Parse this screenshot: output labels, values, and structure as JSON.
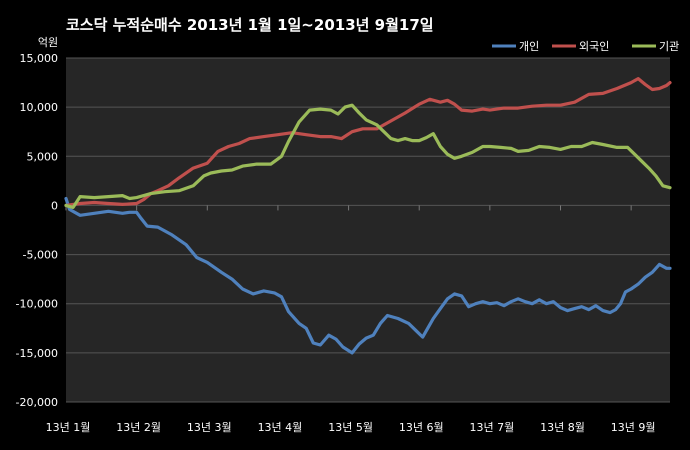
{
  "chart_data": {
    "type": "line",
    "title": "코스닥  누적순매수 2013년 1월 1일~2013년 9월17일",
    "ylabel": "억원",
    "xlabel": "",
    "ylim": [
      -20000,
      15000
    ],
    "yticks": [
      "15,000",
      "10,000",
      "5,000",
      "0",
      "-5,000",
      "-10,000",
      "-15,000",
      "-20,000"
    ],
    "ytick_values": [
      15000,
      10000,
      5000,
      0,
      -5000,
      -10000,
      -15000,
      -20000
    ],
    "xticks": [
      "13년 1월",
      "13년 2월",
      "13년 3월",
      "13년 4월",
      "13년 5월",
      "13년 6월",
      "13년 7월",
      "13년 8월",
      "13년 9월"
    ],
    "x_domain": [
      0,
      8.55
    ],
    "grid": true,
    "legend_position": "top-right",
    "series": [
      {
        "name": "개인",
        "color": "#4f81bd",
        "points": [
          [
            0.0,
            700
          ],
          [
            0.05,
            -400
          ],
          [
            0.2,
            -1000
          ],
          [
            0.4,
            -800
          ],
          [
            0.6,
            -600
          ],
          [
            0.8,
            -800
          ],
          [
            0.9,
            -700
          ],
          [
            1.0,
            -700
          ],
          [
            1.05,
            -1200
          ],
          [
            1.15,
            -2100
          ],
          [
            1.3,
            -2200
          ],
          [
            1.5,
            -3000
          ],
          [
            1.7,
            -4000
          ],
          [
            1.85,
            -5300
          ],
          [
            2.0,
            -5800
          ],
          [
            2.2,
            -6800
          ],
          [
            2.35,
            -7500
          ],
          [
            2.5,
            -8500
          ],
          [
            2.65,
            -9000
          ],
          [
            2.8,
            -8700
          ],
          [
            2.95,
            -8900
          ],
          [
            3.05,
            -9300
          ],
          [
            3.15,
            -10800
          ],
          [
            3.3,
            -12000
          ],
          [
            3.4,
            -12500
          ],
          [
            3.5,
            -14000
          ],
          [
            3.6,
            -14200
          ],
          [
            3.72,
            -13200
          ],
          [
            3.82,
            -13600
          ],
          [
            3.92,
            -14400
          ],
          [
            4.05,
            -15000
          ],
          [
            4.15,
            -14100
          ],
          [
            4.25,
            -13500
          ],
          [
            4.35,
            -13200
          ],
          [
            4.45,
            -12000
          ],
          [
            4.55,
            -11200
          ],
          [
            4.7,
            -11500
          ],
          [
            4.85,
            -12000
          ],
          [
            4.95,
            -12700
          ],
          [
            5.05,
            -13400
          ],
          [
            5.12,
            -12500
          ],
          [
            5.2,
            -11500
          ],
          [
            5.3,
            -10500
          ],
          [
            5.4,
            -9500
          ],
          [
            5.5,
            -9000
          ],
          [
            5.6,
            -9200
          ],
          [
            5.7,
            -10300
          ],
          [
            5.8,
            -10000
          ],
          [
            5.9,
            -9800
          ],
          [
            6.0,
            -10000
          ],
          [
            6.1,
            -9900
          ],
          [
            6.2,
            -10200
          ],
          [
            6.3,
            -9800
          ],
          [
            6.4,
            -9500
          ],
          [
            6.5,
            -9800
          ],
          [
            6.6,
            -10000
          ],
          [
            6.7,
            -9600
          ],
          [
            6.8,
            -10000
          ],
          [
            6.9,
            -9800
          ],
          [
            7.0,
            -10400
          ],
          [
            7.1,
            -10700
          ],
          [
            7.2,
            -10500
          ],
          [
            7.3,
            -10300
          ],
          [
            7.4,
            -10600
          ],
          [
            7.5,
            -10200
          ],
          [
            7.6,
            -10700
          ],
          [
            7.7,
            -10900
          ],
          [
            7.78,
            -10600
          ],
          [
            7.85,
            -10000
          ],
          [
            7.92,
            -8800
          ],
          [
            8.0,
            -8500
          ],
          [
            8.1,
            -8000
          ],
          [
            8.2,
            -7300
          ],
          [
            8.3,
            -6800
          ],
          [
            8.4,
            -6000
          ],
          [
            8.5,
            -6400
          ],
          [
            8.55,
            -6400
          ]
        ]
      },
      {
        "name": "외국인",
        "color": "#c0504d",
        "points": [
          [
            0.0,
            0
          ],
          [
            0.2,
            200
          ],
          [
            0.4,
            300
          ],
          [
            0.6,
            200
          ],
          [
            0.8,
            100
          ],
          [
            1.0,
            200
          ],
          [
            1.1,
            600
          ],
          [
            1.2,
            1200
          ],
          [
            1.3,
            1500
          ],
          [
            1.45,
            2000
          ],
          [
            1.6,
            2800
          ],
          [
            1.8,
            3800
          ],
          [
            2.0,
            4300
          ],
          [
            2.15,
            5500
          ],
          [
            2.3,
            6000
          ],
          [
            2.45,
            6300
          ],
          [
            2.6,
            6800
          ],
          [
            2.8,
            7000
          ],
          [
            3.0,
            7200
          ],
          [
            3.2,
            7400
          ],
          [
            3.4,
            7200
          ],
          [
            3.6,
            7000
          ],
          [
            3.75,
            7000
          ],
          [
            3.9,
            6800
          ],
          [
            4.05,
            7500
          ],
          [
            4.2,
            7800
          ],
          [
            4.4,
            7800
          ],
          [
            4.6,
            8600
          ],
          [
            4.8,
            9400
          ],
          [
            5.0,
            10300
          ],
          [
            5.15,
            10800
          ],
          [
            5.3,
            10500
          ],
          [
            5.4,
            10700
          ],
          [
            5.5,
            10300
          ],
          [
            5.6,
            9700
          ],
          [
            5.75,
            9600
          ],
          [
            5.9,
            9800
          ],
          [
            6.0,
            9700
          ],
          [
            6.2,
            9900
          ],
          [
            6.4,
            9900
          ],
          [
            6.6,
            10100
          ],
          [
            6.8,
            10200
          ],
          [
            7.0,
            10200
          ],
          [
            7.2,
            10500
          ],
          [
            7.4,
            11300
          ],
          [
            7.6,
            11400
          ],
          [
            7.8,
            11900
          ],
          [
            8.0,
            12500
          ],
          [
            8.1,
            12900
          ],
          [
            8.2,
            12300
          ],
          [
            8.3,
            11800
          ],
          [
            8.4,
            11900
          ],
          [
            8.5,
            12200
          ],
          [
            8.55,
            12500
          ]
        ]
      },
      {
        "name": "기관",
        "color": "#9bbb59",
        "points": [
          [
            0.0,
            0
          ],
          [
            0.1,
            -200
          ],
          [
            0.2,
            900
          ],
          [
            0.4,
            800
          ],
          [
            0.6,
            900
          ],
          [
            0.8,
            1000
          ],
          [
            0.9,
            700
          ],
          [
            1.0,
            800
          ],
          [
            1.2,
            1200
          ],
          [
            1.4,
            1400
          ],
          [
            1.6,
            1500
          ],
          [
            1.8,
            2000
          ],
          [
            1.95,
            3000
          ],
          [
            2.05,
            3300
          ],
          [
            2.2,
            3500
          ],
          [
            2.35,
            3600
          ],
          [
            2.5,
            4000
          ],
          [
            2.7,
            4200
          ],
          [
            2.9,
            4200
          ],
          [
            3.05,
            5000
          ],
          [
            3.15,
            6500
          ],
          [
            3.3,
            8500
          ],
          [
            3.45,
            9700
          ],
          [
            3.6,
            9800
          ],
          [
            3.75,
            9700
          ],
          [
            3.85,
            9300
          ],
          [
            3.95,
            10000
          ],
          [
            4.05,
            10200
          ],
          [
            4.15,
            9400
          ],
          [
            4.25,
            8700
          ],
          [
            4.4,
            8200
          ],
          [
            4.5,
            7500
          ],
          [
            4.6,
            6800
          ],
          [
            4.7,
            6600
          ],
          [
            4.8,
            6800
          ],
          [
            4.9,
            6600
          ],
          [
            5.0,
            6600
          ],
          [
            5.1,
            6900
          ],
          [
            5.2,
            7300
          ],
          [
            5.3,
            6000
          ],
          [
            5.4,
            5200
          ],
          [
            5.5,
            4800
          ],
          [
            5.6,
            5000
          ],
          [
            5.75,
            5400
          ],
          [
            5.9,
            6000
          ],
          [
            6.0,
            6000
          ],
          [
            6.15,
            5900
          ],
          [
            6.3,
            5800
          ],
          [
            6.4,
            5500
          ],
          [
            6.55,
            5600
          ],
          [
            6.7,
            6000
          ],
          [
            6.85,
            5900
          ],
          [
            7.0,
            5700
          ],
          [
            7.15,
            6000
          ],
          [
            7.3,
            6000
          ],
          [
            7.45,
            6400
          ],
          [
            7.6,
            6200
          ],
          [
            7.8,
            5900
          ],
          [
            7.95,
            5900
          ],
          [
            8.05,
            5200
          ],
          [
            8.15,
            4500
          ],
          [
            8.25,
            3800
          ],
          [
            8.35,
            3000
          ],
          [
            8.45,
            2000
          ],
          [
            8.55,
            1800
          ]
        ]
      }
    ]
  }
}
